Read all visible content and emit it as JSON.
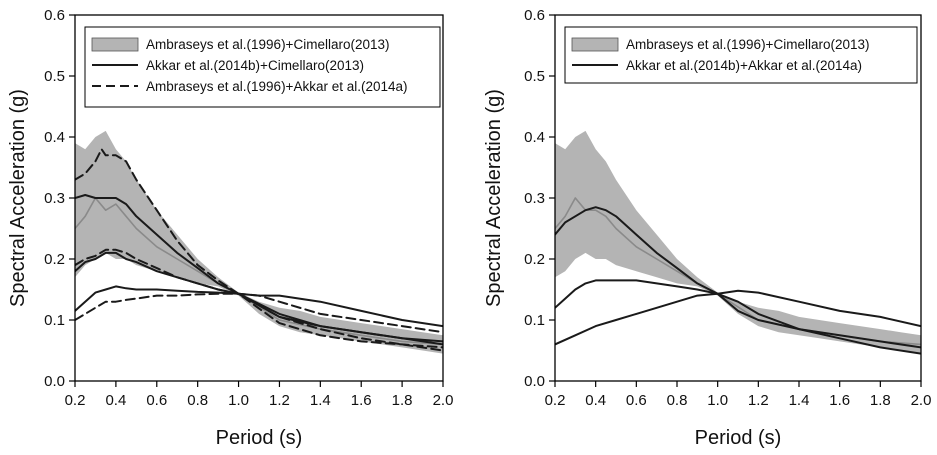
{
  "figure": {
    "background": "#ffffff"
  },
  "chart_data": [
    {
      "type": "line",
      "title": "",
      "xlabel": "Period (s)",
      "ylabel": "Spectral Acceleration (g)",
      "xlim": [
        0.2,
        2.0
      ],
      "ylim": [
        0.0,
        0.6
      ],
      "xticks": [
        "0.2",
        "0.4",
        "0.6",
        "0.8",
        "1.0",
        "1.2",
        "1.4",
        "1.6",
        "1.8",
        "2.0"
      ],
      "yticks": [
        "0.0",
        "0.1",
        "0.2",
        "0.3",
        "0.4",
        "0.5",
        "0.6"
      ],
      "grid": false,
      "legend_position": "top-right",
      "legend": [
        {
          "label": "Ambraseys et al.(1996)+Cimellaro(2013)",
          "style": "band"
        },
        {
          "label": "Akkar et al.(2014b)+Cimellaro(2013)",
          "style": "solid"
        },
        {
          "label": "Ambraseys et al.(1996)+Akkar et al.(2014a)",
          "style": "dashed"
        }
      ],
      "series": [
        {
          "role": "band",
          "style": "band",
          "x": [
            0.2,
            0.25,
            0.3,
            0.35,
            0.4,
            0.45,
            0.5,
            0.6,
            0.7,
            0.8,
            0.9,
            1.0,
            1.1,
            1.2,
            1.3,
            1.4,
            1.5,
            1.6,
            1.7,
            1.8,
            1.9,
            2.0
          ],
          "low": [
            0.17,
            0.19,
            0.2,
            0.21,
            0.2,
            0.2,
            0.19,
            0.18,
            0.17,
            0.16,
            0.155,
            0.14,
            0.11,
            0.09,
            0.08,
            0.075,
            0.07,
            0.065,
            0.06,
            0.055,
            0.05,
            0.045
          ],
          "high": [
            0.39,
            0.38,
            0.4,
            0.41,
            0.38,
            0.36,
            0.33,
            0.28,
            0.24,
            0.2,
            0.17,
            0.145,
            0.13,
            0.12,
            0.115,
            0.105,
            0.1,
            0.095,
            0.09,
            0.085,
            0.08,
            0.075
          ]
        },
        {
          "role": "band-median",
          "style": "gray",
          "x": [
            0.2,
            0.25,
            0.3,
            0.35,
            0.4,
            0.45,
            0.5,
            0.6,
            0.7,
            0.8,
            0.9,
            1.0,
            1.2,
            1.4,
            1.6,
            1.8,
            2.0
          ],
          "y": [
            0.25,
            0.27,
            0.3,
            0.28,
            0.29,
            0.27,
            0.25,
            0.22,
            0.2,
            0.18,
            0.16,
            0.143,
            0.1,
            0.085,
            0.075,
            0.065,
            0.06
          ]
        },
        {
          "role": "upper",
          "style": "solid",
          "x": [
            0.2,
            0.25,
            0.3,
            0.35,
            0.4,
            0.45,
            0.5,
            0.6,
            0.7,
            0.8,
            0.9,
            1.0,
            1.2,
            1.4,
            1.6,
            1.8,
            2.0
          ],
          "y": [
            0.3,
            0.305,
            0.3,
            0.3,
            0.3,
            0.29,
            0.27,
            0.24,
            0.21,
            0.185,
            0.16,
            0.143,
            0.11,
            0.09,
            0.08,
            0.07,
            0.065
          ]
        },
        {
          "role": "median",
          "style": "solid",
          "x": [
            0.2,
            0.25,
            0.3,
            0.35,
            0.4,
            0.45,
            0.5,
            0.6,
            0.7,
            0.8,
            0.9,
            1.0,
            1.2,
            1.4,
            1.6,
            1.8,
            2.0
          ],
          "y": [
            0.18,
            0.195,
            0.2,
            0.21,
            0.21,
            0.2,
            0.195,
            0.18,
            0.17,
            0.16,
            0.15,
            0.143,
            0.105,
            0.09,
            0.08,
            0.07,
            0.06
          ]
        },
        {
          "role": "lower",
          "style": "solid",
          "x": [
            0.2,
            0.25,
            0.3,
            0.35,
            0.4,
            0.45,
            0.5,
            0.6,
            0.7,
            0.8,
            0.9,
            1.0,
            1.1,
            1.2,
            1.4,
            1.6,
            1.8,
            2.0
          ],
          "y": [
            0.115,
            0.13,
            0.145,
            0.15,
            0.155,
            0.152,
            0.15,
            0.15,
            0.148,
            0.146,
            0.145,
            0.143,
            0.14,
            0.14,
            0.13,
            0.115,
            0.1,
            0.09
          ]
        },
        {
          "role": "upper",
          "style": "dashed",
          "x": [
            0.2,
            0.25,
            0.3,
            0.33,
            0.35,
            0.4,
            0.45,
            0.5,
            0.6,
            0.7,
            0.8,
            0.9,
            1.0,
            1.2,
            1.4,
            1.6,
            1.8,
            2.0
          ],
          "y": [
            0.33,
            0.34,
            0.36,
            0.38,
            0.37,
            0.37,
            0.36,
            0.33,
            0.28,
            0.23,
            0.19,
            0.165,
            0.143,
            0.095,
            0.075,
            0.065,
            0.06,
            0.055
          ]
        },
        {
          "role": "median",
          "style": "dashed",
          "x": [
            0.2,
            0.25,
            0.3,
            0.35,
            0.4,
            0.45,
            0.5,
            0.6,
            0.7,
            0.8,
            0.9,
            1.0,
            1.2,
            1.4,
            1.6,
            1.8,
            2.0
          ],
          "y": [
            0.19,
            0.2,
            0.205,
            0.215,
            0.215,
            0.21,
            0.2,
            0.185,
            0.17,
            0.16,
            0.15,
            0.143,
            0.105,
            0.085,
            0.07,
            0.06,
            0.05
          ]
        },
        {
          "role": "lower",
          "style": "dashed",
          "x": [
            0.2,
            0.25,
            0.3,
            0.35,
            0.4,
            0.45,
            0.5,
            0.6,
            0.7,
            0.8,
            0.9,
            1.0,
            1.1,
            1.2,
            1.4,
            1.6,
            1.8,
            2.0
          ],
          "y": [
            0.1,
            0.11,
            0.12,
            0.13,
            0.13,
            0.133,
            0.135,
            0.14,
            0.14,
            0.142,
            0.143,
            0.143,
            0.14,
            0.13,
            0.11,
            0.1,
            0.09,
            0.08
          ]
        }
      ]
    },
    {
      "type": "line",
      "title": "",
      "xlabel": "Period (s)",
      "ylabel": "Spectral Acceleration (g)",
      "xlim": [
        0.2,
        2.0
      ],
      "ylim": [
        0.0,
        0.6
      ],
      "xticks": [
        "0.2",
        "0.4",
        "0.6",
        "0.8",
        "1.0",
        "1.2",
        "1.4",
        "1.6",
        "1.8",
        "2.0"
      ],
      "yticks": [
        "0.0",
        "0.1",
        "0.2",
        "0.3",
        "0.4",
        "0.5",
        "0.6"
      ],
      "grid": false,
      "legend_position": "top-right",
      "legend": [
        {
          "label": "Ambraseys et al.(1996)+Cimellaro(2013)",
          "style": "band"
        },
        {
          "label": "Akkar et al.(2014b)+Akkar et al.(2014a)",
          "style": "solid"
        }
      ],
      "series": [
        {
          "role": "band",
          "style": "band",
          "x": [
            0.2,
            0.25,
            0.3,
            0.35,
            0.4,
            0.45,
            0.5,
            0.6,
            0.7,
            0.8,
            0.9,
            1.0,
            1.1,
            1.2,
            1.3,
            1.4,
            1.5,
            1.6,
            1.7,
            1.8,
            1.9,
            2.0
          ],
          "low": [
            0.17,
            0.18,
            0.2,
            0.21,
            0.2,
            0.2,
            0.19,
            0.18,
            0.17,
            0.16,
            0.155,
            0.14,
            0.11,
            0.09,
            0.08,
            0.075,
            0.07,
            0.065,
            0.06,
            0.055,
            0.05,
            0.045
          ],
          "high": [
            0.39,
            0.38,
            0.4,
            0.41,
            0.38,
            0.36,
            0.33,
            0.28,
            0.24,
            0.2,
            0.17,
            0.145,
            0.13,
            0.12,
            0.115,
            0.105,
            0.1,
            0.095,
            0.09,
            0.085,
            0.08,
            0.075
          ]
        },
        {
          "role": "band-median",
          "style": "gray",
          "x": [
            0.2,
            0.25,
            0.3,
            0.35,
            0.4,
            0.45,
            0.5,
            0.6,
            0.7,
            0.8,
            0.9,
            1.0,
            1.2,
            1.4,
            1.6,
            1.8,
            2.0
          ],
          "y": [
            0.25,
            0.27,
            0.3,
            0.28,
            0.28,
            0.27,
            0.25,
            0.22,
            0.2,
            0.18,
            0.16,
            0.143,
            0.1,
            0.085,
            0.075,
            0.065,
            0.06
          ]
        },
        {
          "role": "median",
          "style": "solid",
          "x": [
            0.2,
            0.25,
            0.3,
            0.35,
            0.4,
            0.45,
            0.5,
            0.6,
            0.7,
            0.8,
            0.9,
            1.0,
            1.1,
            1.2,
            1.4,
            1.6,
            1.8,
            2.0
          ],
          "y": [
            0.24,
            0.26,
            0.27,
            0.28,
            0.285,
            0.28,
            0.27,
            0.24,
            0.21,
            0.185,
            0.16,
            0.143,
            0.115,
            0.1,
            0.085,
            0.075,
            0.065,
            0.055
          ]
        },
        {
          "role": "upper",
          "style": "solid",
          "x": [
            0.2,
            0.25,
            0.3,
            0.35,
            0.4,
            0.45,
            0.5,
            0.6,
            0.7,
            0.8,
            0.9,
            1.0,
            1.1,
            1.2,
            1.4,
            1.6,
            1.8,
            2.0
          ],
          "y": [
            0.12,
            0.135,
            0.15,
            0.16,
            0.165,
            0.165,
            0.165,
            0.165,
            0.16,
            0.155,
            0.15,
            0.143,
            0.13,
            0.11,
            0.085,
            0.07,
            0.055,
            0.045
          ]
        },
        {
          "role": "lower",
          "style": "solid",
          "x": [
            0.2,
            0.3,
            0.4,
            0.5,
            0.6,
            0.7,
            0.8,
            0.9,
            1.0,
            1.1,
            1.2,
            1.4,
            1.6,
            1.8,
            2.0
          ],
          "y": [
            0.06,
            0.075,
            0.09,
            0.1,
            0.11,
            0.12,
            0.13,
            0.14,
            0.143,
            0.148,
            0.145,
            0.13,
            0.115,
            0.105,
            0.09
          ]
        }
      ]
    }
  ]
}
